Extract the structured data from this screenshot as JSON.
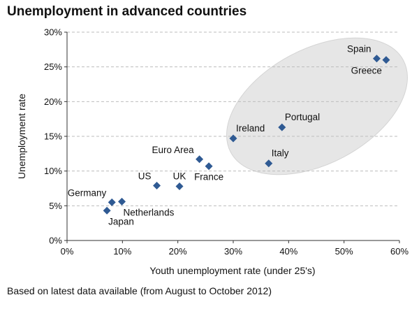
{
  "chart_data": {
    "type": "scatter",
    "title": "Unemployment in advanced countries",
    "xlabel": "Youth unemployment rate (under 25's)",
    "ylabel": "Unemployment rate",
    "xlim": [
      0,
      60
    ],
    "ylim": [
      0,
      30
    ],
    "xticks": [
      0,
      10,
      20,
      30,
      40,
      50,
      60
    ],
    "yticks": [
      0,
      5,
      10,
      15,
      20,
      25,
      30
    ],
    "xtick_labels": [
      "0%",
      "10%",
      "20%",
      "30%",
      "40%",
      "50%",
      "60%"
    ],
    "ytick_labels": [
      "0%",
      "5%",
      "10%",
      "15%",
      "20%",
      "25%",
      "30%"
    ],
    "grid": "horizontal dashed",
    "marker_color": "#2f5a93",
    "highlight_fill": "#e6e6e6",
    "points": [
      {
        "label": "Japan",
        "x": 7.2,
        "y": 4.3,
        "label_pos": "below-right"
      },
      {
        "label": "Germany",
        "x": 8.1,
        "y": 5.5,
        "label_pos": "above-left"
      },
      {
        "label": "Netherlands",
        "x": 9.9,
        "y": 5.6,
        "label_pos": "below-right"
      },
      {
        "label": "US",
        "x": 16.2,
        "y": 7.9,
        "label_pos": "above-left"
      },
      {
        "label": "UK",
        "x": 20.3,
        "y": 7.8,
        "label_pos": "above"
      },
      {
        "label": "Euro Area",
        "x": 23.9,
        "y": 11.7,
        "label_pos": "above-left"
      },
      {
        "label": "France",
        "x": 25.6,
        "y": 10.7,
        "label_pos": "below"
      },
      {
        "label": "Ireland",
        "x": 30.0,
        "y": 14.7,
        "label_pos": "above-right"
      },
      {
        "label": "Italy",
        "x": 36.4,
        "y": 11.1,
        "label_pos": "above-right"
      },
      {
        "label": "Portugal",
        "x": 38.8,
        "y": 16.3,
        "label_pos": "above-right"
      },
      {
        "label": "Spain",
        "x": 55.9,
        "y": 26.2,
        "label_pos": "above-left"
      },
      {
        "label": "Greece",
        "x": 57.6,
        "y": 26.0,
        "label_pos": "below-left"
      }
    ]
  },
  "footnote": "Based on latest data available (from August to October 2012)"
}
